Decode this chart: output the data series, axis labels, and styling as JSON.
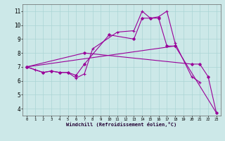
{
  "xlabel": "Windchill (Refroidissement éolien,°C)",
  "x_ticks": [
    0,
    1,
    2,
    3,
    4,
    5,
    6,
    7,
    8,
    9,
    10,
    11,
    12,
    13,
    14,
    15,
    16,
    17,
    18,
    19,
    20,
    21,
    22,
    23
  ],
  "y_ticks": [
    4,
    5,
    6,
    7,
    8,
    9,
    10,
    11
  ],
  "ylim": [
    3.5,
    11.5
  ],
  "xlim": [
    -0.5,
    23.5
  ],
  "bg_color": "#cce8e8",
  "line_color": "#990099",
  "grid_color": "#aad4d4",
  "s0x": [
    0,
    1,
    2,
    3,
    4,
    5,
    6,
    7,
    8,
    11,
    13,
    14,
    15,
    16,
    17,
    18,
    20,
    21
  ],
  "s0y": [
    7.0,
    6.8,
    6.6,
    6.7,
    6.6,
    6.6,
    6.2,
    6.5,
    8.3,
    9.5,
    9.6,
    11.0,
    10.5,
    10.6,
    11.0,
    8.7,
    6.3,
    5.9
  ],
  "s1x": [
    0,
    2,
    3,
    4,
    5,
    6,
    7,
    10,
    13,
    14,
    15,
    16,
    17,
    18
  ],
  "s1y": [
    7.0,
    6.6,
    6.7,
    6.6,
    6.6,
    6.4,
    7.2,
    9.3,
    9.0,
    10.5,
    10.5,
    10.5,
    8.5,
    8.5
  ],
  "s2x": [
    0,
    7,
    20,
    21,
    22,
    23
  ],
  "s2y": [
    7.0,
    8.0,
    7.2,
    7.2,
    6.3,
    3.7
  ],
  "s3x": [
    0,
    18,
    23
  ],
  "s3y": [
    7.0,
    8.5,
    3.7
  ]
}
